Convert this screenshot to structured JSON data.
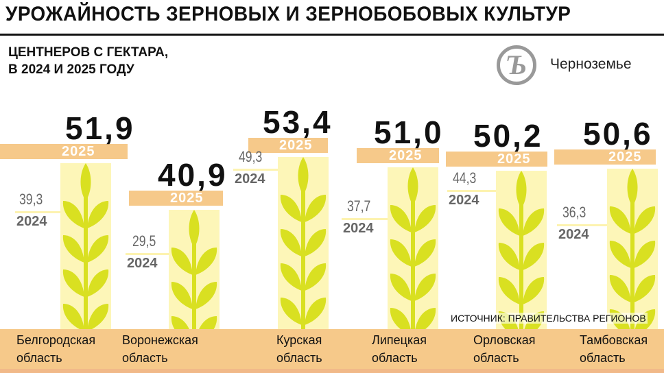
{
  "title": "УРОЖАЙНОСТЬ ЗЕРНОВЫХ И ЗЕРНОБОБОВЫХ КУЛЬТУР",
  "subtitle_line1": "ЦЕНТНЕРОВ С ГЕКТАРА,",
  "subtitle_line2": "В 2024 И 2025 ГОДУ",
  "brand": "Черноземье",
  "logo_letter": "Ъ",
  "source": "ИСТОЧНИК: ПРАВИТЕЛЬСТВА РЕГИОНОВ",
  "colors": {
    "band": "#f6c98a",
    "column": "#fdf6b8",
    "wheat": "#d9e021",
    "text2024": "#666666"
  },
  "chart_data": {
    "type": "bar",
    "title": "УРОЖАЙНОСТЬ ЗЕРНОВЫХ И ЗЕРНОБОБОВЫХ КУЛЬТУР",
    "ylabel": "центнеров с гектара",
    "categories": [
      [
        "Белгородская",
        "область"
      ],
      [
        "Воронежская",
        "область"
      ],
      [
        "Курская",
        "область"
      ],
      [
        "Липецкая",
        "область"
      ],
      [
        "Орловская",
        "область"
      ],
      [
        "Тамбовская",
        "область"
      ]
    ],
    "series": [
      {
        "name": "2024",
        "values": [
          39.3,
          29.5,
          49.3,
          37.7,
          44.3,
          36.3
        ],
        "labels": [
          "39,3",
          "29,5",
          "49,3",
          "37,7",
          "44,3",
          "36,3"
        ]
      },
      {
        "name": "2025",
        "values": [
          51.9,
          40.9,
          53.4,
          51.0,
          50.2,
          50.6
        ],
        "labels": [
          "51,9",
          "40,9",
          "53,4",
          "51,0",
          "50,2",
          "50,6"
        ]
      }
    ]
  }
}
